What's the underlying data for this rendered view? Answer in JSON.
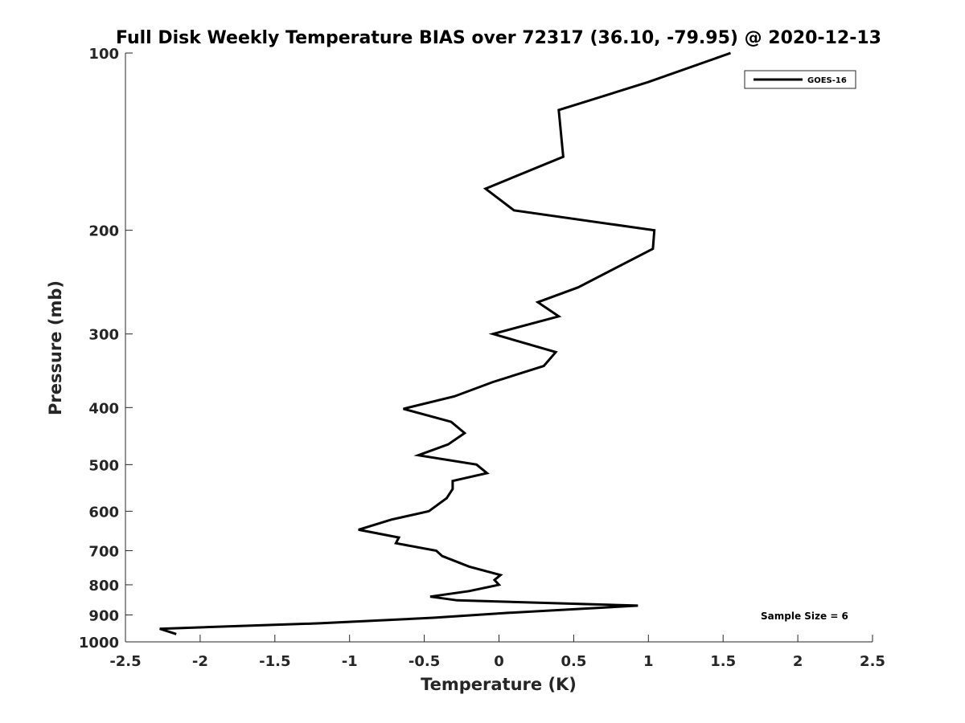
{
  "chart_data": {
    "type": "line",
    "title": "Full Disk Weekly Temperature BIAS over 72317 (36.10, -79.95) @ 2020-12-13",
    "xlabel": "Temperature (K)",
    "ylabel": "Pressure (mb)",
    "xlim": [
      -2.5,
      2.5
    ],
    "ylim": [
      100,
      1000
    ],
    "y_scale": "log",
    "y_reversed": true,
    "x_ticks": [
      "-2.5",
      "-2",
      "-1.5",
      "-1",
      "-0.5",
      "0",
      "0.5",
      "1",
      "1.5",
      "2",
      "2.5"
    ],
    "y_ticks": [
      "100",
      "200",
      "300",
      "400",
      "500",
      "600",
      "700",
      "800",
      "900",
      "1000"
    ],
    "grid": false,
    "legend": {
      "position": "top-right",
      "entries": [
        "GOES-16"
      ]
    },
    "annotation": "Sample Size = 6",
    "series": [
      {
        "name": "GOES-16",
        "color": "#000000",
        "points": [
          {
            "x": 1.55,
            "y": 100
          },
          {
            "x": 1.0,
            "y": 112
          },
          {
            "x": 0.4,
            "y": 125
          },
          {
            "x": 0.43,
            "y": 150
          },
          {
            "x": -0.09,
            "y": 170
          },
          {
            "x": 0.1,
            "y": 185
          },
          {
            "x": 1.04,
            "y": 200
          },
          {
            "x": 1.03,
            "y": 215
          },
          {
            "x": 0.53,
            "y": 250
          },
          {
            "x": 0.26,
            "y": 265
          },
          {
            "x": 0.4,
            "y": 280
          },
          {
            "x": -0.04,
            "y": 300
          },
          {
            "x": 0.38,
            "y": 322
          },
          {
            "x": 0.3,
            "y": 340
          },
          {
            "x": -0.04,
            "y": 362
          },
          {
            "x": -0.3,
            "y": 383
          },
          {
            "x": -0.64,
            "y": 402
          },
          {
            "x": -0.32,
            "y": 423
          },
          {
            "x": -0.23,
            "y": 442
          },
          {
            "x": -0.34,
            "y": 462
          },
          {
            "x": -0.54,
            "y": 482
          },
          {
            "x": -0.15,
            "y": 500
          },
          {
            "x": -0.08,
            "y": 517
          },
          {
            "x": -0.31,
            "y": 533
          },
          {
            "x": -0.31,
            "y": 550
          },
          {
            "x": -0.35,
            "y": 570
          },
          {
            "x": -0.47,
            "y": 600
          },
          {
            "x": -0.72,
            "y": 620
          },
          {
            "x": -0.94,
            "y": 645
          },
          {
            "x": -0.67,
            "y": 665
          },
          {
            "x": -0.69,
            "y": 680
          },
          {
            "x": -0.42,
            "y": 700
          },
          {
            "x": -0.38,
            "y": 715
          },
          {
            "x": -0.2,
            "y": 745
          },
          {
            "x": 0.01,
            "y": 770
          },
          {
            "x": -0.03,
            "y": 785
          },
          {
            "x": 0.0,
            "y": 800
          },
          {
            "x": -0.2,
            "y": 820
          },
          {
            "x": -0.46,
            "y": 838
          },
          {
            "x": -0.28,
            "y": 850
          },
          {
            "x": 0.93,
            "y": 868
          },
          {
            "x": 0.05,
            "y": 893
          },
          {
            "x": -0.44,
            "y": 910
          },
          {
            "x": -1.2,
            "y": 930
          },
          {
            "x": -2.27,
            "y": 950
          },
          {
            "x": -2.16,
            "y": 970
          }
        ]
      }
    ]
  }
}
